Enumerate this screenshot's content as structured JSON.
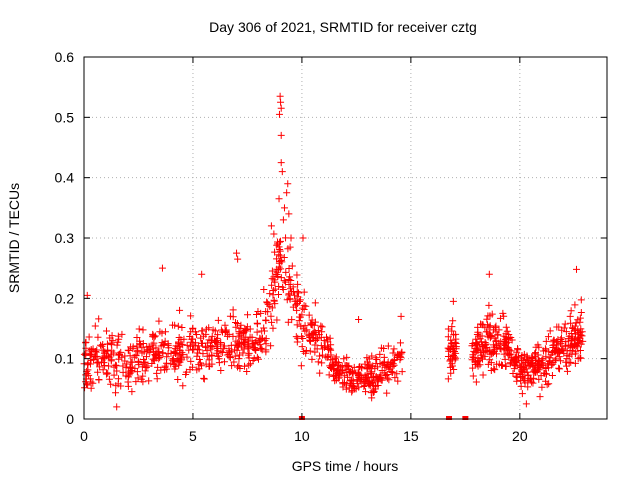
{
  "chart_data": {
    "type": "scatter",
    "title": "Day 306 of 2021, SRMTID for receiver cztg",
    "xlabel": "GPS time / hours",
    "ylabel": "SRMTID / TECUs",
    "xlim": [
      0,
      24
    ],
    "ylim": [
      0,
      0.6
    ],
    "xticks": [
      "0",
      "5",
      "10",
      "15",
      "20"
    ],
    "yticks": [
      "0",
      "0.1",
      "0.2",
      "0.3",
      "0.4",
      "0.5",
      "0.6"
    ],
    "grid": true,
    "marker": "+",
    "series": [
      {
        "name": "SRMTID",
        "color": "#ff0000",
        "trend": [
          {
            "x": 0.0,
            "base": 0.095,
            "spread": 0.05
          },
          {
            "x": 1.0,
            "base": 0.1,
            "spread": 0.055
          },
          {
            "x": 2.0,
            "base": 0.09,
            "spread": 0.05
          },
          {
            "x": 3.0,
            "base": 0.11,
            "spread": 0.05
          },
          {
            "x": 4.0,
            "base": 0.11,
            "spread": 0.05
          },
          {
            "x": 5.0,
            "base": 0.12,
            "spread": 0.05
          },
          {
            "x": 6.0,
            "base": 0.12,
            "spread": 0.05
          },
          {
            "x": 7.0,
            "base": 0.13,
            "spread": 0.055
          },
          {
            "x": 7.8,
            "base": 0.12,
            "spread": 0.05
          },
          {
            "x": 8.5,
            "base": 0.17,
            "spread": 0.07
          },
          {
            "x": 9.0,
            "base": 0.27,
            "spread": 0.1
          },
          {
            "x": 9.5,
            "base": 0.22,
            "spread": 0.08
          },
          {
            "x": 10.0,
            "base": 0.16,
            "spread": 0.06
          },
          {
            "x": 10.5,
            "base": 0.14,
            "spread": 0.05
          },
          {
            "x": 11.0,
            "base": 0.12,
            "spread": 0.05
          },
          {
            "x": 11.5,
            "base": 0.08,
            "spread": 0.03
          },
          {
            "x": 12.5,
            "base": 0.07,
            "spread": 0.03
          },
          {
            "x": 13.5,
            "base": 0.07,
            "spread": 0.035
          },
          {
            "x": 14.0,
            "base": 0.1,
            "spread": 0.04
          },
          {
            "x": 14.5,
            "base": 0.1,
            "spread": 0.04
          },
          {
            "x": 16.8,
            "base": 0.11,
            "spread": 0.04
          },
          {
            "x": 17.0,
            "base": 0.12,
            "spread": 0.04
          },
          {
            "x": 17.8,
            "base": 0.1,
            "spread": 0.04
          },
          {
            "x": 18.5,
            "base": 0.13,
            "spread": 0.05
          },
          {
            "x": 19.5,
            "base": 0.12,
            "spread": 0.05
          },
          {
            "x": 20.0,
            "base": 0.08,
            "spread": 0.035
          },
          {
            "x": 21.0,
            "base": 0.09,
            "spread": 0.04
          },
          {
            "x": 22.0,
            "base": 0.13,
            "spread": 0.05
          },
          {
            "x": 22.8,
            "base": 0.14,
            "spread": 0.05
          }
        ],
        "segments": [
          {
            "x0": 0.0,
            "x1": 14.6,
            "count": 900
          },
          {
            "x0": 16.7,
            "x1": 17.1,
            "count": 40
          },
          {
            "x0": 17.8,
            "x1": 22.9,
            "count": 430
          }
        ],
        "highlights": [
          {
            "x": 9.0,
            "y": 0.535
          },
          {
            "x": 9.02,
            "y": 0.525
          },
          {
            "x": 9.05,
            "y": 0.515
          },
          {
            "x": 8.97,
            "y": 0.505
          },
          {
            "x": 9.05,
            "y": 0.47
          },
          {
            "x": 9.05,
            "y": 0.425
          },
          {
            "x": 9.1,
            "y": 0.41
          },
          {
            "x": 9.35,
            "y": 0.39
          },
          {
            "x": 9.3,
            "y": 0.375
          },
          {
            "x": 8.95,
            "y": 0.365
          },
          {
            "x": 9.2,
            "y": 0.35
          },
          {
            "x": 9.4,
            "y": 0.34
          },
          {
            "x": 9.15,
            "y": 0.33
          },
          {
            "x": 8.6,
            "y": 0.32
          },
          {
            "x": 9.5,
            "y": 0.3
          },
          {
            "x": 10.05,
            "y": 0.3
          },
          {
            "x": 7.0,
            "y": 0.275
          },
          {
            "x": 7.05,
            "y": 0.265
          },
          {
            "x": 3.6,
            "y": 0.25
          },
          {
            "x": 22.6,
            "y": 0.248
          },
          {
            "x": 18.6,
            "y": 0.24
          },
          {
            "x": 5.4,
            "y": 0.24
          },
          {
            "x": 0.15,
            "y": 0.205
          },
          {
            "x": 16.95,
            "y": 0.195
          },
          {
            "x": 12.6,
            "y": 0.165
          },
          {
            "x": 14.55,
            "y": 0.17
          },
          {
            "x": 1.5,
            "y": 0.02
          },
          {
            "x": 20.3,
            "y": 0.025
          },
          {
            "x": 13.2,
            "y": 0.035
          }
        ],
        "zero_points": [
          {
            "x": 10.0,
            "y": 0.0
          },
          {
            "x": 16.75,
            "y": 0.0
          },
          {
            "x": 17.5,
            "y": 0.0
          }
        ]
      }
    ]
  }
}
